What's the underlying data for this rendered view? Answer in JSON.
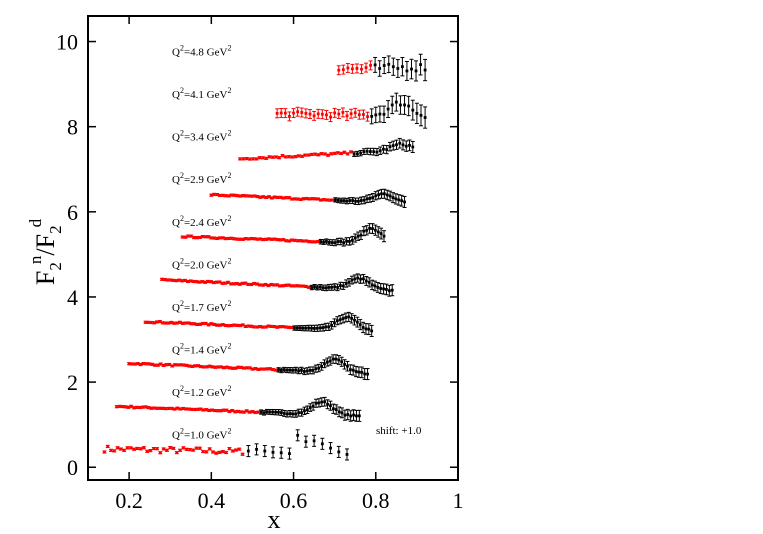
{
  "chart_data": {
    "type": "scatter",
    "xlabel": "x",
    "ylabel_parts": {
      "base1": "F",
      "sub1": "2",
      "sup1": "n",
      "slash": "/",
      "base2": "F",
      "sub2": "2",
      "sup2": "d"
    },
    "xlim": [
      0.1,
      1.0
    ],
    "ylim": [
      -0.3,
      10.6
    ],
    "xticks": [
      0.2,
      0.4,
      0.6,
      0.8,
      1.0
    ],
    "xtick_labels": [
      "0.2",
      "0.4",
      "0.6",
      "0.8",
      "1"
    ],
    "yticks": [
      0,
      2,
      4,
      6,
      8,
      10
    ],
    "ytick_labels": [
      "0",
      "2",
      "4",
      "6",
      "8",
      "10"
    ],
    "shift_annotation": "shift: +1.0",
    "colors": {
      "low_x": "#ff0000",
      "high_x": "#000000"
    },
    "series": [
      {
        "q2_base": "Q",
        "q2_sup": "2",
        "q2_rest": "=1.0 GeV",
        "unit_sup": "2",
        "shift": 0,
        "x_start": 0.14,
        "x_end": 0.74,
        "x_split": 0.48,
        "y_start": 0.43,
        "y_end": 0.32,
        "peak_x": 0.0,
        "peak_height": 0.0,
        "noise": 0.12,
        "step": 0.008,
        "black_points": [
          [
            0.49,
            0.38
          ],
          [
            0.51,
            0.42
          ],
          [
            0.53,
            0.38
          ],
          [
            0.55,
            0.35
          ],
          [
            0.57,
            0.34
          ],
          [
            0.59,
            0.32
          ],
          [
            0.61,
            0.75
          ],
          [
            0.63,
            0.6
          ],
          [
            0.65,
            0.62
          ],
          [
            0.67,
            0.55
          ],
          [
            0.69,
            0.45
          ],
          [
            0.71,
            0.36
          ],
          [
            0.73,
            0.3
          ]
        ]
      },
      {
        "q2_base": "Q",
        "q2_sup": "2",
        "q2_rest": "=1.2 GeV",
        "unit_sup": "2",
        "shift": 1,
        "x_start": 0.17,
        "x_end": 0.76,
        "x_split": 0.52,
        "y_start": 0.43,
        "y_end": 0.2,
        "peak_x": 0.67,
        "peak_height": 0.3,
        "noise": 0.03,
        "step": 0.007,
        "black_points": []
      },
      {
        "q2_base": "Q",
        "q2_sup": "2",
        "q2_rest": "=1.4 GeV",
        "unit_sup": "2",
        "shift": 2,
        "x_start": 0.2,
        "x_end": 0.78,
        "x_split": 0.56,
        "y_start": 0.44,
        "y_end": 0.2,
        "peak_x": 0.7,
        "peak_height": 0.3,
        "noise": 0.03,
        "step": 0.007,
        "black_points": []
      },
      {
        "q2_base": "Q",
        "q2_sup": "2",
        "q2_rest": "=1.7 GeV",
        "unit_sup": "2",
        "shift": 3,
        "x_start": 0.24,
        "x_end": 0.79,
        "x_split": 0.6,
        "y_start": 0.42,
        "y_end": 0.2,
        "peak_x": 0.73,
        "peak_height": 0.3,
        "noise": 0.03,
        "step": 0.007,
        "black_points": []
      },
      {
        "q2_base": "Q",
        "q2_sup": "2",
        "q2_rest": "=2.0 GeV",
        "unit_sup": "2",
        "shift": 4,
        "x_start": 0.28,
        "x_end": 0.84,
        "x_split": 0.64,
        "y_start": 0.4,
        "y_end": 0.15,
        "peak_x": 0.76,
        "peak_height": 0.25,
        "noise": 0.03,
        "step": 0.007,
        "black_points": []
      },
      {
        "q2_base": "Q",
        "q2_sup": "2",
        "q2_rest": "=2.4 GeV",
        "unit_sup": "2",
        "shift": 5,
        "x_start": 0.33,
        "x_end": 0.82,
        "x_split": 0.66,
        "y_start": 0.42,
        "y_end": 0.25,
        "peak_x": 0.79,
        "peak_height": 0.35,
        "noise": 0.03,
        "step": 0.007,
        "black_points": []
      },
      {
        "q2_base": "Q",
        "q2_sup": "2",
        "q2_rest": "=2.9 GeV",
        "unit_sup": "2",
        "shift": 6,
        "x_start": 0.4,
        "x_end": 0.87,
        "x_split": 0.7,
        "y_start": 0.4,
        "y_end": 0.2,
        "peak_x": 0.82,
        "peak_height": 0.2,
        "noise": 0.03,
        "step": 0.007,
        "black_points": []
      },
      {
        "q2_base": "Q",
        "q2_sup": "2",
        "q2_rest": "=3.4 GeV",
        "unit_sup": "2",
        "shift": 7,
        "x_start": 0.47,
        "x_end": 0.89,
        "x_split": 0.74,
        "y_start": 0.25,
        "y_end": 0.45,
        "peak_x": 0.86,
        "peak_height": 0.15,
        "noise": 0.05,
        "step": 0.008,
        "black_points": []
      },
      {
        "q2_base": "Q",
        "q2_sup": "2",
        "q2_rest": "=4.1 GeV",
        "unit_sup": "2",
        "shift": 8,
        "x_start": 0.56,
        "x_end": 0.92,
        "x_split": 0.78,
        "y_start": 0.3,
        "y_end": 0.25,
        "peak_x": 0.86,
        "peak_height": 0.3,
        "noise": 0.1,
        "step": 0.01,
        "black_points": []
      },
      {
        "q2_base": "Q",
        "q2_sup": "2",
        "q2_rest": "=4.8 GeV",
        "unit_sup": "2",
        "shift": 9,
        "x_start": 0.71,
        "x_end": 0.92,
        "x_split": 0.79,
        "y_start": 0.35,
        "y_end": 0.4,
        "peak_x": 0.0,
        "peak_height": 0.0,
        "noise": 0.15,
        "step": 0.011,
        "black_points": []
      }
    ]
  }
}
